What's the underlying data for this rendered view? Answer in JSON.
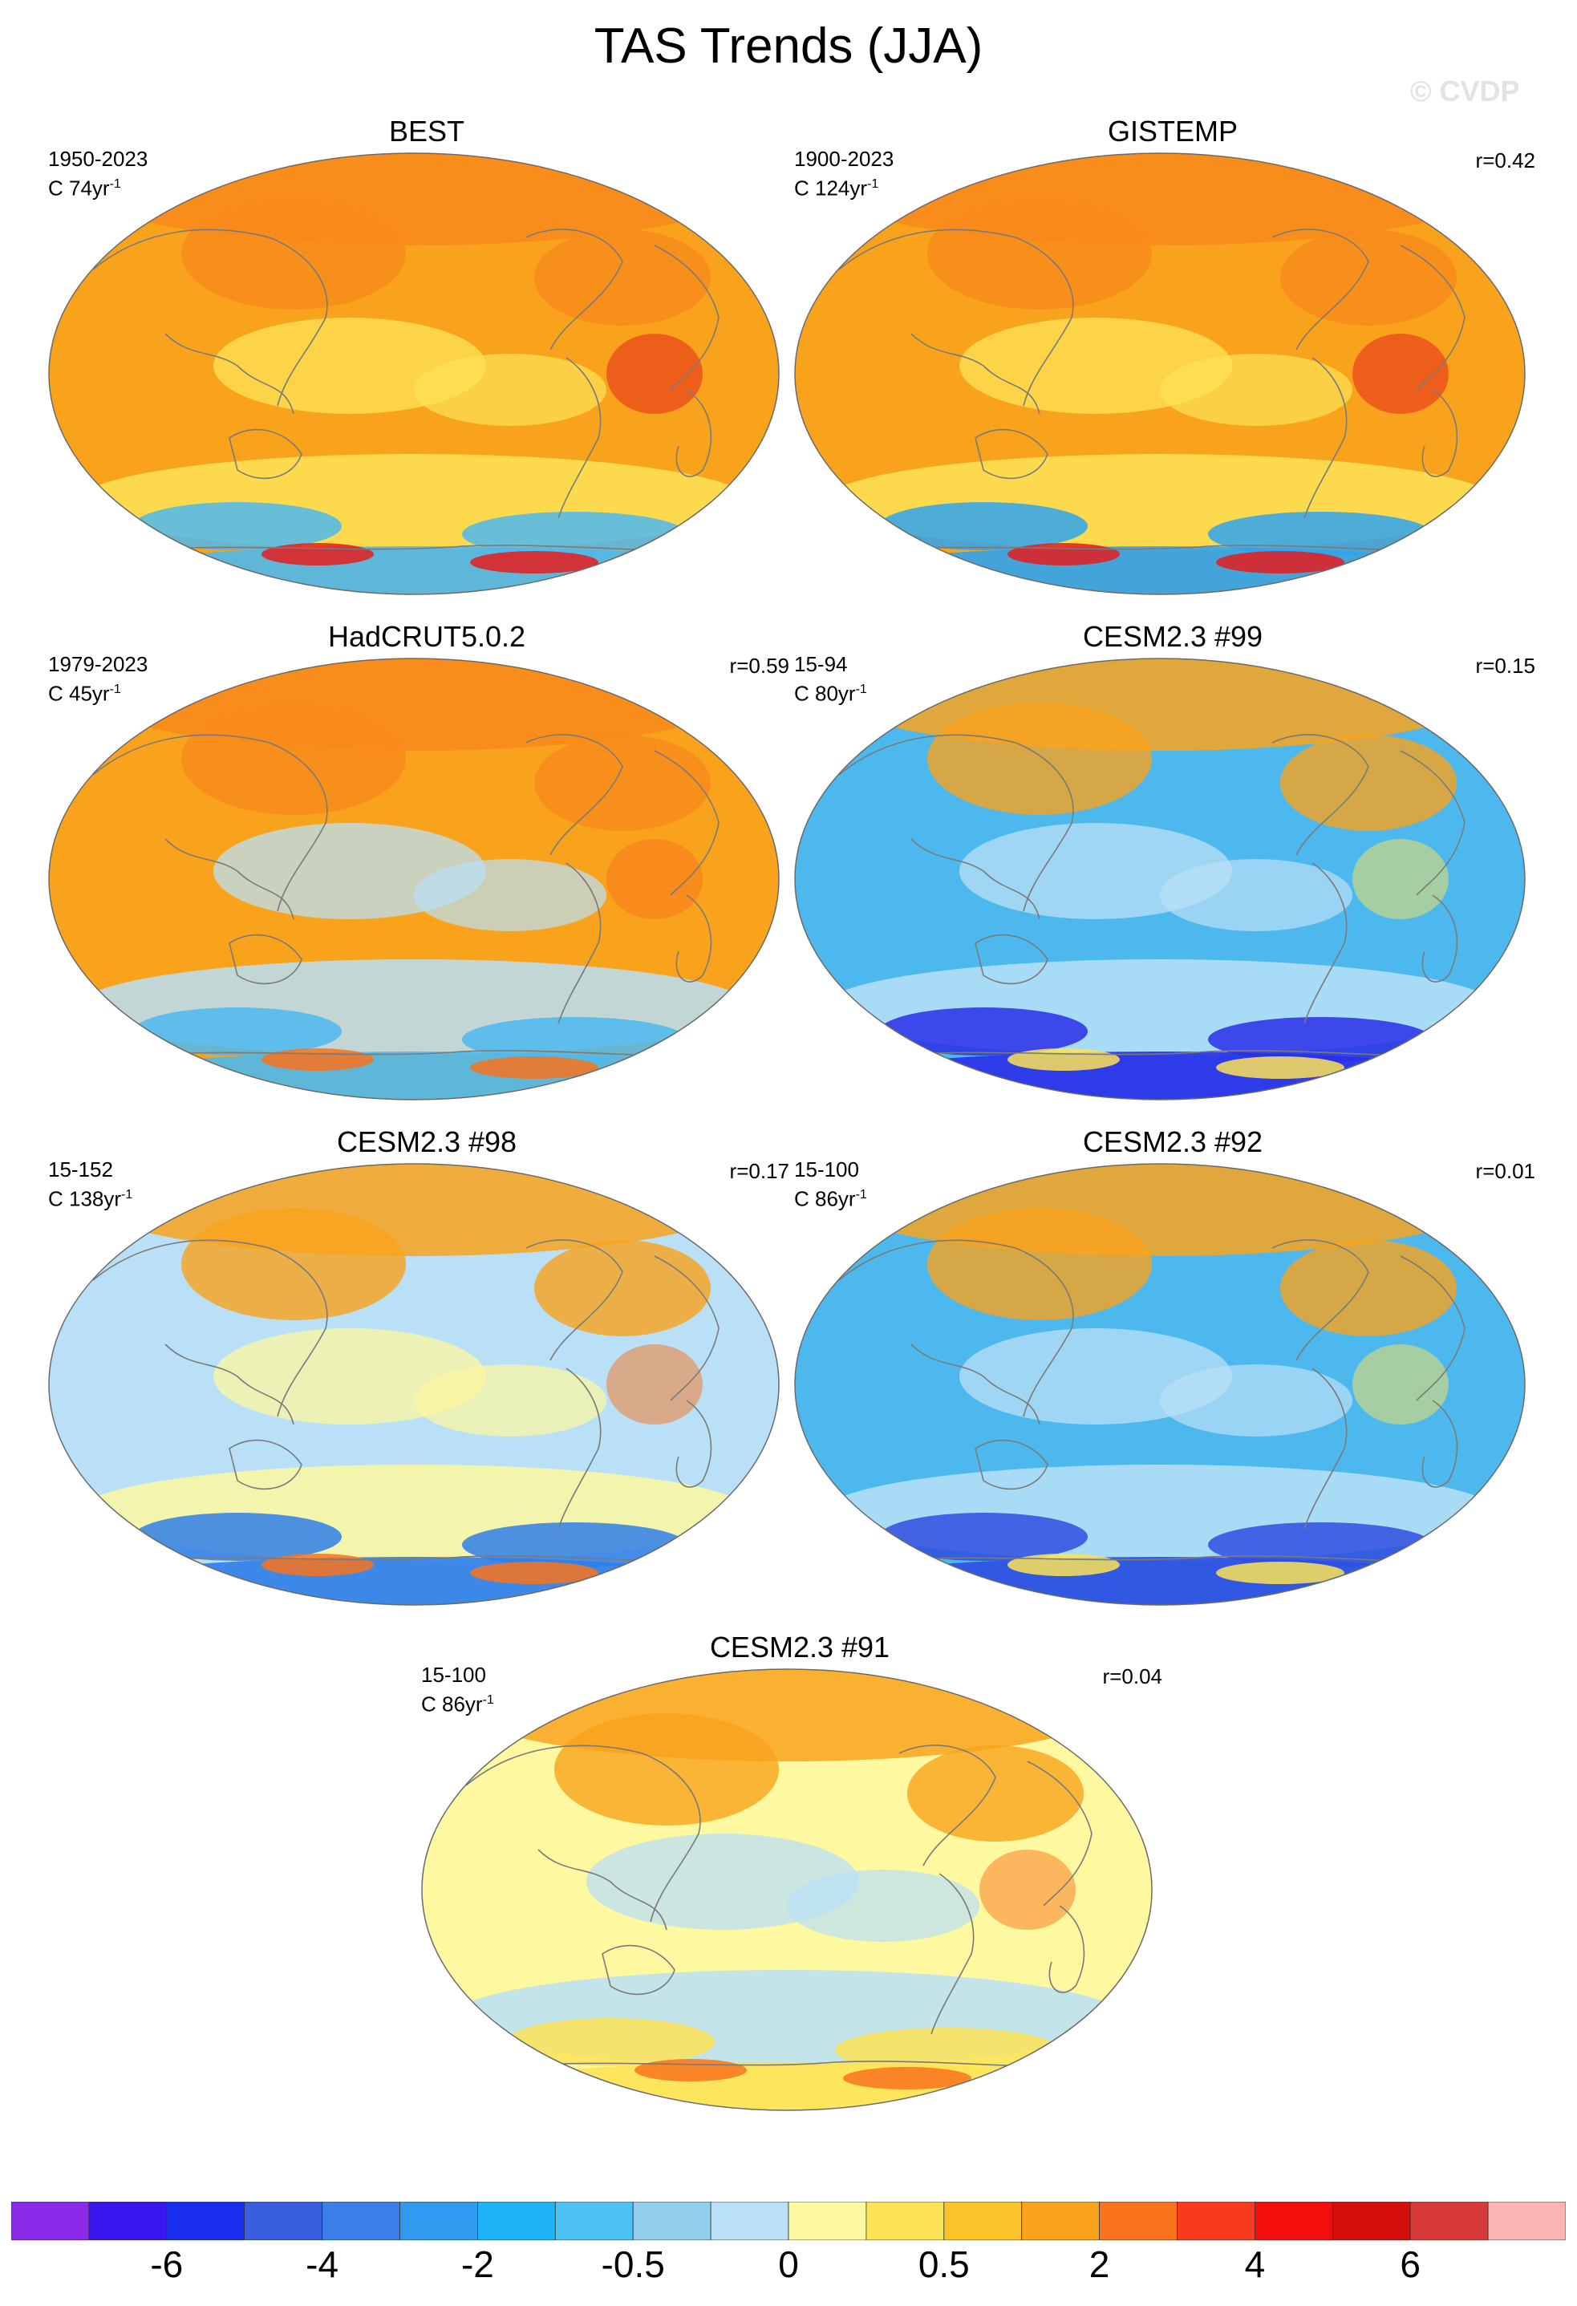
{
  "title": "TAS Trends (JJA)",
  "watermark": "© CVDP",
  "panels": [
    {
      "title": "BEST",
      "period": "1950-2023",
      "trend_prefix": "C 74yr",
      "trend_exp": "-1",
      "r": "",
      "colors": {
        "base": "#f9a31c",
        "warm": "#f98a1c",
        "cool": "#fde356",
        "polar": "#4db8ee",
        "hot": "#e51c1c"
      }
    },
    {
      "title": "GISTEMP",
      "period": "1900-2023",
      "trend_prefix": "C 124yr",
      "trend_exp": "-1",
      "r": "r=0.42",
      "colors": {
        "base": "#f9a31c",
        "warm": "#f98a1c",
        "cool": "#fde356",
        "polar": "#2fa4f0",
        "hot": "#e51c1c"
      }
    },
    {
      "title": "HadCRUT5.0.2",
      "period": "1979-2023",
      "trend_prefix": "C 45yr",
      "trend_exp": "-1",
      "r": "r=0.59",
      "colors": {
        "base": "#f9a31c",
        "warm": "#f98a1c",
        "cool": "#b9e0f6",
        "polar": "#4db8ee",
        "hot": "#f9731c"
      }
    },
    {
      "title": "CESM2.3 #99",
      "period": "15-94",
      "trend_prefix": "C 80yr",
      "trend_exp": "-1",
      "r": "r=0.15",
      "colors": {
        "base": "#4db8ee",
        "warm": "#f9a31c",
        "cool": "#b9e0f6",
        "polar": "#2a2ee8",
        "hot": "#fde356"
      }
    },
    {
      "title": "CESM2.3 #98",
      "period": "15-152",
      "trend_prefix": "C 138yr",
      "trend_exp": "-1",
      "r": "r=0.17",
      "colors": {
        "base": "#b9e0f6",
        "warm": "#f9a31c",
        "cool": "#fef8a0",
        "polar": "#2f7ee8",
        "hot": "#f9731c"
      }
    },
    {
      "title": "CESM2.3 #92",
      "period": "15-100",
      "trend_prefix": "C 86yr",
      "trend_exp": "-1",
      "r": "r=0.01",
      "colors": {
        "base": "#4db8ee",
        "warm": "#f9a31c",
        "cool": "#b9e0f6",
        "polar": "#2f4ee0",
        "hot": "#fde356"
      }
    },
    {
      "title": "CESM2.3 #91",
      "period": "15-100",
      "trend_prefix": "C 86yr",
      "trend_exp": "-1",
      "r": "r=0.04",
      "colors": {
        "base": "#fef8a0",
        "warm": "#f9a31c",
        "cool": "#b9e0f6",
        "polar": "#fde356",
        "hot": "#f9731c"
      }
    }
  ],
  "colorbar": {
    "colors": [
      "#8a2ae8",
      "#3a16ee",
      "#1a2ef0",
      "#3a5ee0",
      "#3a7ee8",
      "#2f9af0",
      "#1fb4f6",
      "#4dc0f4",
      "#92cdee",
      "#b9e0f6",
      "#fef8a0",
      "#fde356",
      "#fbc22a",
      "#f9a31c",
      "#f9731c",
      "#f93a1c",
      "#f40d0d",
      "#d40d0d",
      "#d83a3a",
      "#fbb4b4"
    ],
    "labels": [
      "-6",
      "-4",
      "-2",
      "-0.5",
      "0",
      "0.5",
      "2",
      "4",
      "6"
    ],
    "label_boundary_index": [
      2,
      4,
      6,
      8,
      10,
      12,
      14,
      16,
      18
    ]
  }
}
